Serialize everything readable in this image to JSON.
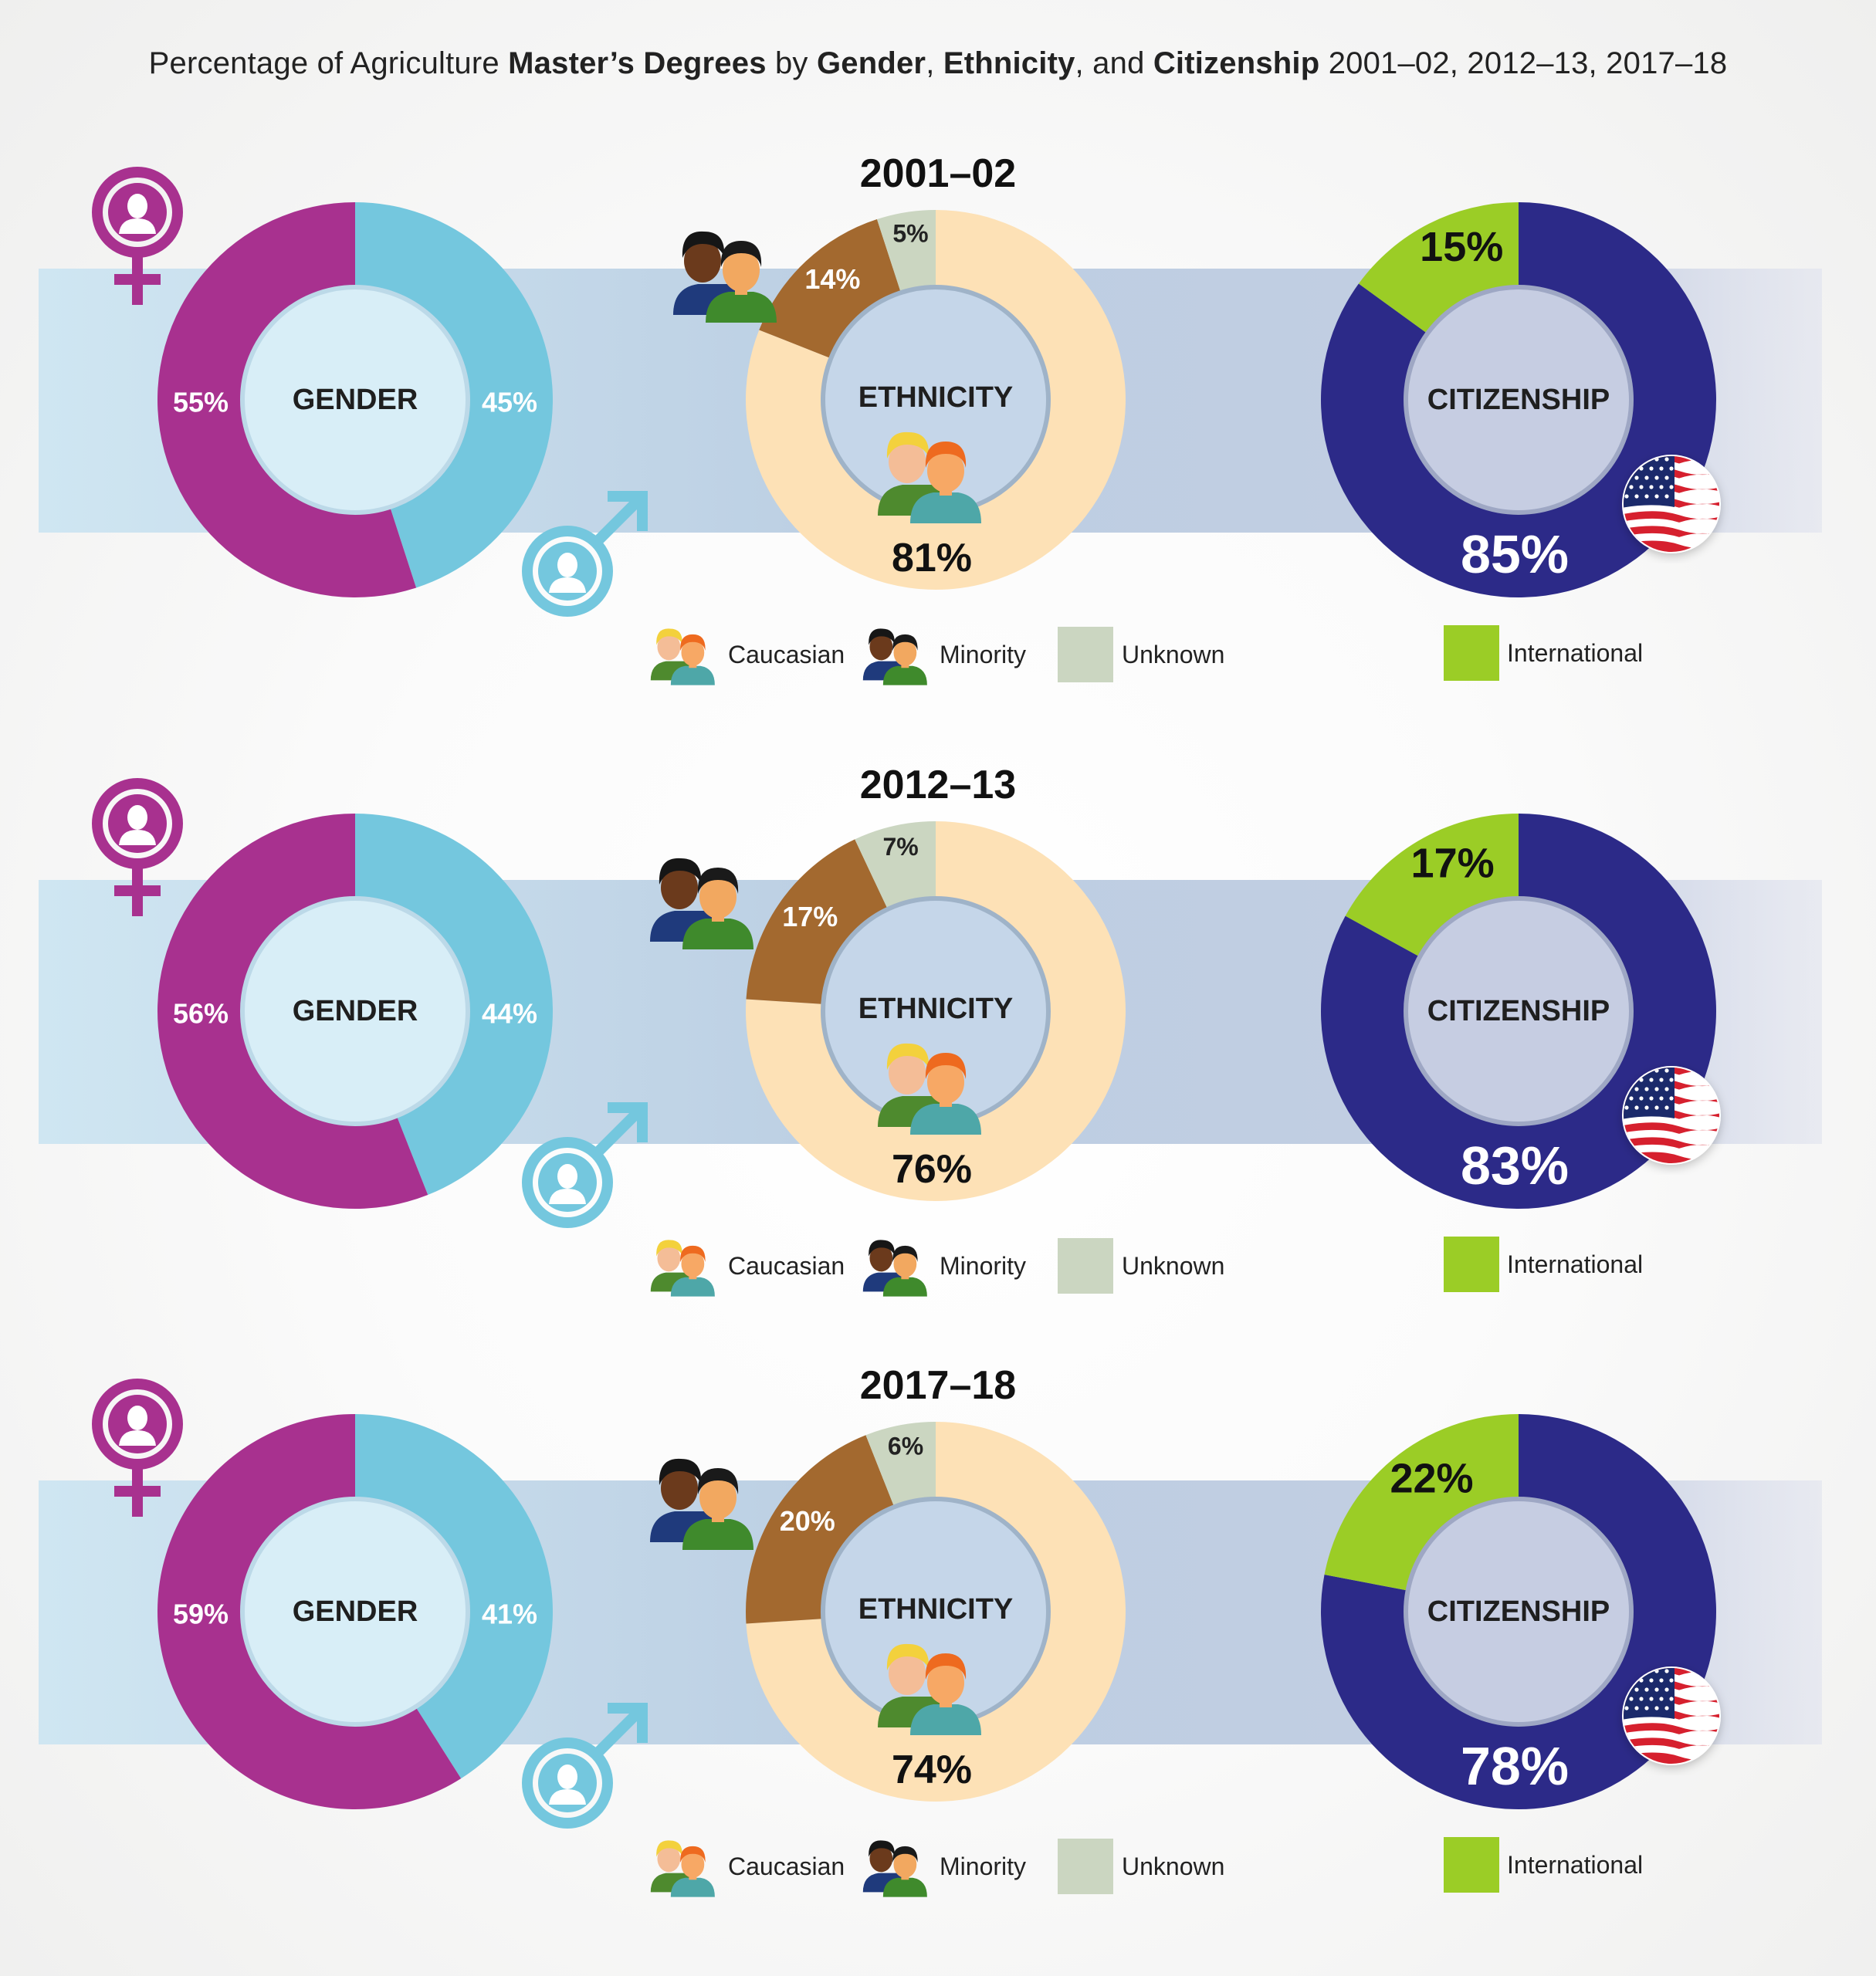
{
  "title": {
    "parts": [
      {
        "text": "Percentage of Agriculture ",
        "bold": false
      },
      {
        "text": "Master’s Degrees",
        "bold": true
      },
      {
        "text": " by ",
        "bold": false
      },
      {
        "text": "Gender",
        "bold": true
      },
      {
        "text": ", ",
        "bold": false
      },
      {
        "text": "Ethnicity",
        "bold": true
      },
      {
        "text": ", and ",
        "bold": false
      },
      {
        "text": "Citizenship",
        "bold": true
      },
      {
        "text": " 2001–02, 2012–13, 2017–18",
        "bold": false
      }
    ]
  },
  "colors": {
    "female": "#a8318f",
    "male": "#74c7de",
    "caucasian": "#fde1b6",
    "minority": "#a3692f",
    "unknown": "#cbd6c1",
    "us": "#2c2a88",
    "international": "#9bcd26"
  },
  "legends": {
    "ethnicity": [
      "Caucasian",
      "Minority",
      "Unknown"
    ],
    "citizenship": [
      "International"
    ]
  },
  "chart_data": [
    {
      "type": "donut-group",
      "period": "2001–02",
      "gender": {
        "center_label": "GENDER",
        "female": 55,
        "male": 45,
        "female_label": "55%",
        "male_label": "45%"
      },
      "ethnicity": {
        "center_label": "ETHNICITY",
        "caucasian": 81,
        "minority": 14,
        "unknown": 5,
        "caucasian_label": "81%",
        "minority_label": "14%",
        "unknown_label": "5%"
      },
      "citizenship": {
        "center_label": "CITIZENSHIP",
        "us": 85,
        "international": 15,
        "us_label": "85%",
        "international_label": "15%"
      }
    },
    {
      "type": "donut-group",
      "period": "2012–13",
      "gender": {
        "center_label": "GENDER",
        "female": 56,
        "male": 44,
        "female_label": "56%",
        "male_label": "44%"
      },
      "ethnicity": {
        "center_label": "ETHNICITY",
        "caucasian": 76,
        "minority": 17,
        "unknown": 7,
        "caucasian_label": "76%",
        "minority_label": "17%",
        "unknown_label": "7%"
      },
      "citizenship": {
        "center_label": "CITIZENSHIP",
        "us": 83,
        "international": 17,
        "us_label": "83%",
        "international_label": "17%"
      }
    },
    {
      "type": "donut-group",
      "period": "2017–18",
      "gender": {
        "center_label": "GENDER",
        "female": 59,
        "male": 41,
        "female_label": "59%",
        "male_label": "41%"
      },
      "ethnicity": {
        "center_label": "ETHNICITY",
        "caucasian": 74,
        "minority": 20,
        "unknown": 6,
        "caucasian_label": "74%",
        "minority_label": "20%",
        "unknown_label": "6%"
      },
      "citizenship": {
        "center_label": "CITIZENSHIP",
        "us": 78,
        "international": 22,
        "us_label": "78%",
        "international_label": "22%"
      }
    }
  ]
}
